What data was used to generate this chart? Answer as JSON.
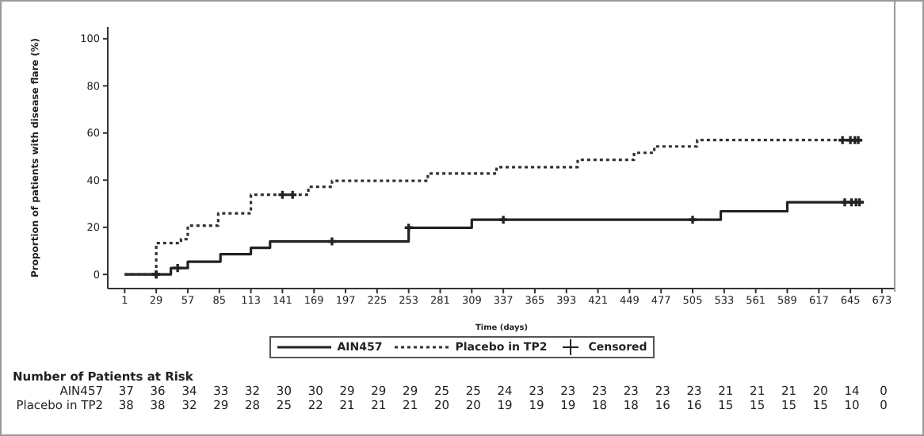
{
  "chart_data": {
    "type": "step",
    "xlabel": "Time (days)",
    "ylabel": "Proportion of patients with disease flare (%)",
    "xlim": [
      -14,
      685
    ],
    "ylim": [
      -6,
      105
    ],
    "xticks": [
      1,
      29,
      57,
      85,
      113,
      141,
      169,
      197,
      225,
      253,
      281,
      309,
      337,
      365,
      393,
      421,
      449,
      477,
      505,
      533,
      561,
      589,
      617,
      645,
      673
    ],
    "yticks": [
      0,
      20,
      40,
      60,
      80,
      100
    ],
    "grid": false,
    "legend": "bottom",
    "series": [
      {
        "name": "AIN457",
        "color": "#222222",
        "line_style": "solid",
        "x": [
          1,
          42,
          57,
          86,
          113,
          130,
          253,
          309,
          530,
          589,
          657
        ],
        "values": [
          0,
          2.7,
          5.4,
          8.6,
          11.3,
          14,
          19.8,
          23.2,
          26.8,
          30.6,
          30.6
        ]
      },
      {
        "name": "Placebo in TP2",
        "color": "#333333",
        "line_style": "dotted",
        "x": [
          1,
          29,
          51,
          57,
          84,
          113,
          164,
          185,
          270,
          331,
          403,
          453,
          471,
          509,
          657
        ],
        "values": [
          0,
          13.3,
          15,
          20.7,
          25.9,
          33.8,
          37.2,
          39.7,
          42.8,
          45.5,
          48.6,
          51.6,
          54.3,
          57,
          57
        ]
      },
      {
        "name": "Censored",
        "type": "scatter",
        "marker": "cross",
        "color": "#222222",
        "x": [
          29,
          48,
          185,
          253,
          337,
          505,
          640,
          646,
          650,
          653,
          29,
          141,
          150,
          638,
          645,
          649,
          652
        ],
        "values": [
          0,
          2.7,
          14,
          19.8,
          23.2,
          23.2,
          30.6,
          30.6,
          30.6,
          30.6,
          0,
          33.8,
          33.8,
          57,
          57,
          57,
          57
        ]
      }
    ],
    "annotations": [
      "Number of Patients at Risk",
      "AIN457",
      "37",
      "36",
      "34",
      "33",
      "32",
      "30",
      "30",
      "29",
      "29",
      "29",
      "25",
      "25",
      "24",
      "23",
      "23",
      "23",
      "23",
      "23",
      "23",
      "21",
      "21",
      "21",
      "20",
      "14",
      "0",
      "Placebo in TP2",
      "38",
      "38",
      "32",
      "29",
      "28",
      "25",
      "22",
      "21",
      "21",
      "21",
      "20",
      "20",
      "19",
      "19",
      "19",
      "18",
      "18",
      "16",
      "16",
      "15",
      "15",
      "15",
      "15",
      "10",
      "0"
    ]
  }
}
